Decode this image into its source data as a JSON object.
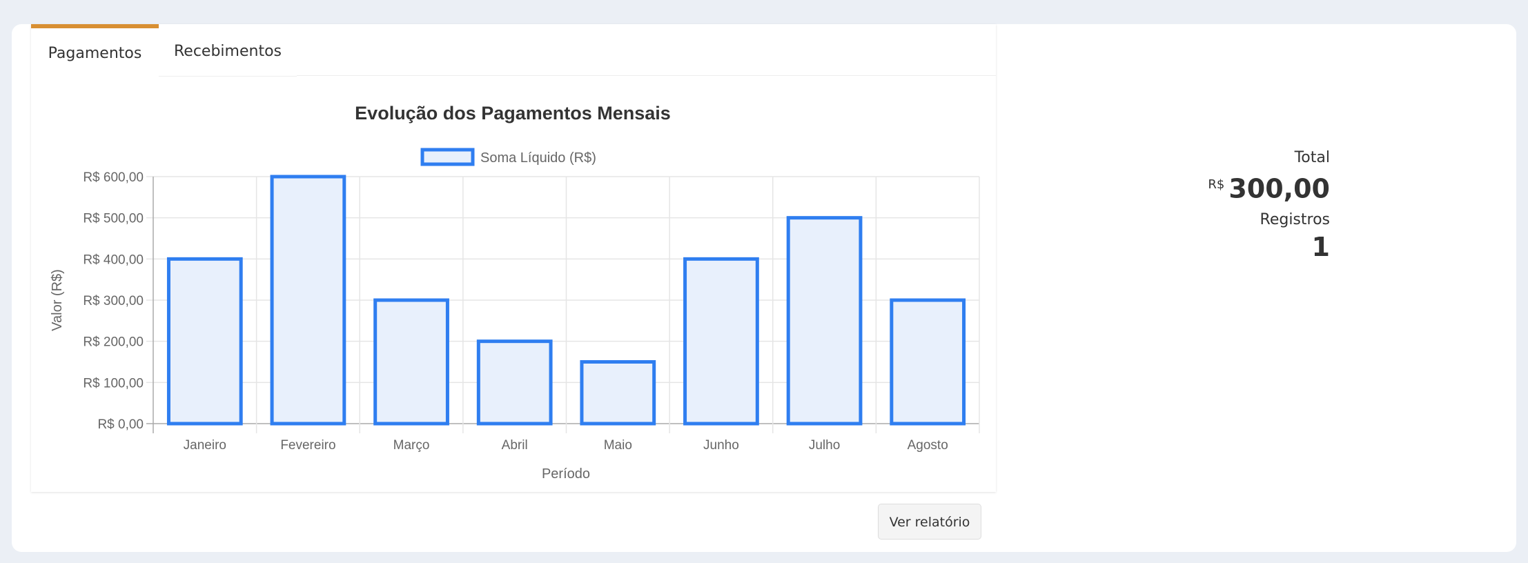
{
  "tabs": [
    {
      "label": "Pagamentos",
      "active": true
    },
    {
      "label": "Recebimentos",
      "active": false
    }
  ],
  "stats": {
    "total_label": "Total",
    "total_currency": "R$",
    "total_value": "300,00",
    "records_label": "Registros",
    "records_value": "1"
  },
  "report_button": "Ver relatório",
  "colors": {
    "accent_tab": "#d88f32",
    "bar_border": "#2f7ef0",
    "bar_fill": "#e8f0fc"
  },
  "chart_data": {
    "type": "bar",
    "title": "Evolução dos Pagamentos Mensais",
    "legend": "Soma Líquido (R$)",
    "legend_position": "top",
    "xlabel": "Período",
    "ylabel": "Valor (R$)",
    "categories": [
      "Janeiro",
      "Fevereiro",
      "Março",
      "Abril",
      "Maio",
      "Junho",
      "Julho",
      "Agosto"
    ],
    "series": [
      {
        "name": "Soma Líquido (R$)",
        "values": [
          400,
          600,
          300,
          200,
          150,
          400,
          500,
          300
        ]
      }
    ],
    "ylim": [
      0,
      600
    ],
    "yticks": [
      "R$ 0,00",
      "R$ 100,00",
      "R$ 200,00",
      "R$ 300,00",
      "R$ 400,00",
      "R$ 500,00",
      "R$ 600,00"
    ],
    "grid": true
  }
}
